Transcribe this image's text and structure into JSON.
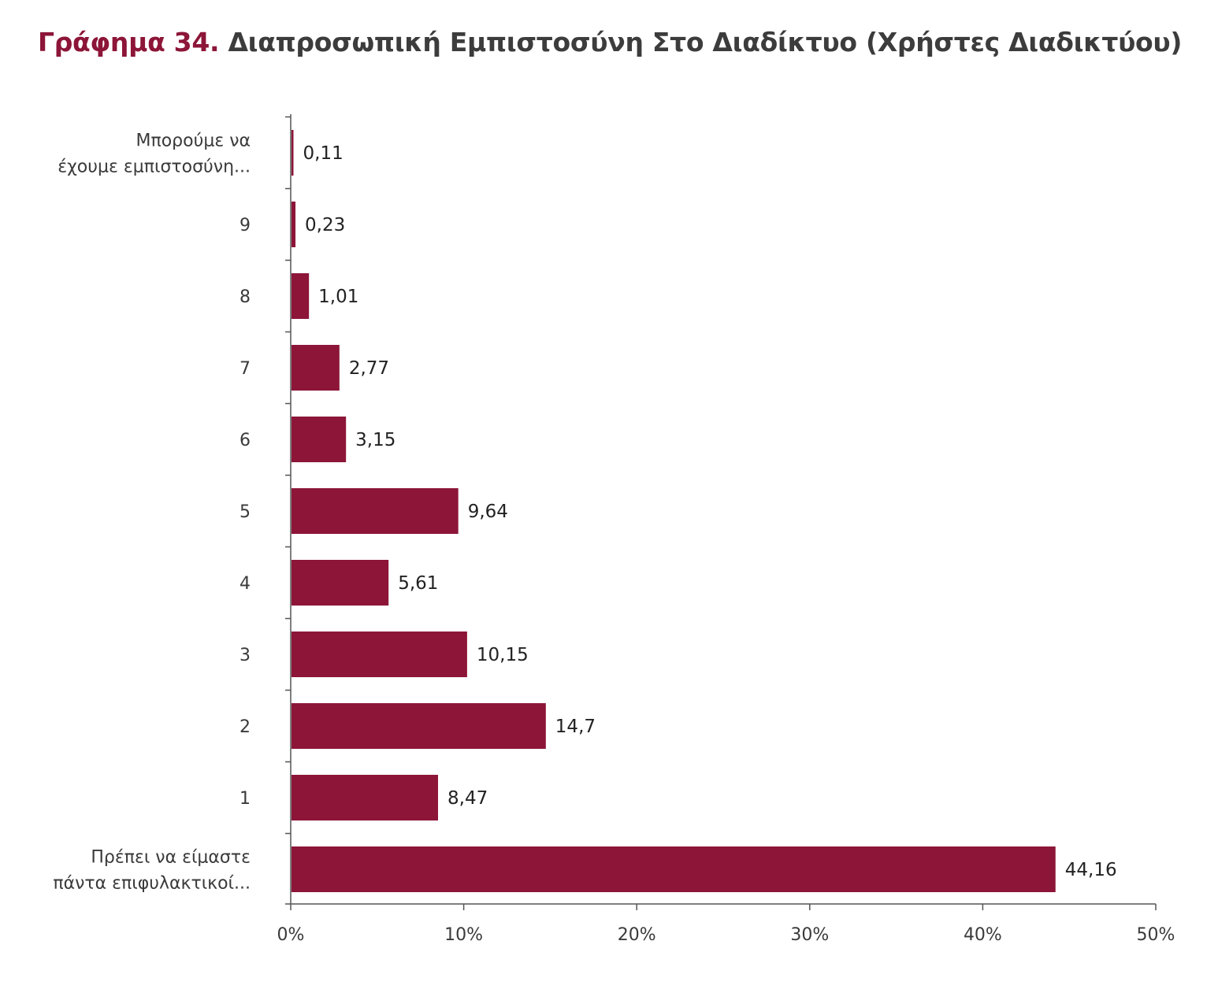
{
  "header": {
    "title_prefix": "Γράφημα 34.",
    "title_rest": "Διαπροσωπική Εμπιστοσύνη Στο Διαδίκτυο (Χρήστες Διαδικτύου)"
  },
  "colors": {
    "bar": "#8c1538",
    "title_prefix": "#8c1538",
    "axis": "#555555"
  },
  "chart_data": {
    "type": "bar",
    "orientation": "horizontal",
    "title": "Γράφημα 34. Διαπροσωπική Εμπιστοσύνη Στο Διαδίκτυο (Χρήστες Διαδικτύου)",
    "categories": [
      [
        "Μπορούμε να",
        "έχουμε εμπιστοσύνη..."
      ],
      [
        "9"
      ],
      [
        "8"
      ],
      [
        "7"
      ],
      [
        "6"
      ],
      [
        "5"
      ],
      [
        "4"
      ],
      [
        "3"
      ],
      [
        "2"
      ],
      [
        "1"
      ],
      [
        "Πρέπει να είμαστε",
        "πάντα επιφυλακτικοί..."
      ]
    ],
    "values": [
      0.11,
      0.23,
      1.01,
      2.77,
      3.15,
      9.64,
      5.61,
      10.15,
      14.7,
      8.47,
      44.16
    ],
    "value_labels": [
      "0,11",
      "0,23",
      "1,01",
      "2,77",
      "3,15",
      "9,64",
      "5,61",
      "10,15",
      "14,7",
      "8,47",
      "44,16"
    ],
    "xlim": [
      0,
      50
    ],
    "xticks": [
      0,
      10,
      20,
      30,
      40,
      50
    ],
    "xtick_labels": [
      "0%",
      "10%",
      "20%",
      "30%",
      "40%",
      "50%"
    ],
    "xlabel": "",
    "ylabel": "",
    "grid": false,
    "legend": "none"
  }
}
